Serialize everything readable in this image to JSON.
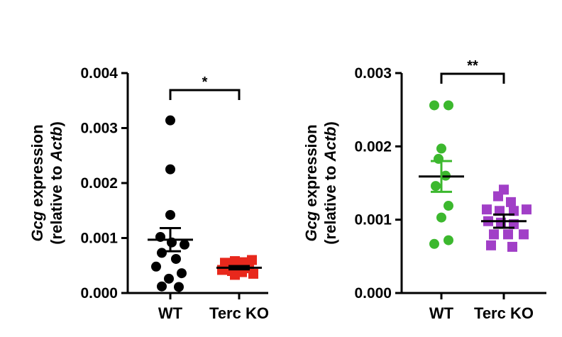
{
  "chart_data": [
    {
      "type": "scatter",
      "categories": [
        "WT",
        "Terc KO"
      ],
      "ylabel": {
        "gene": "Gcg",
        "line1_rest": " expression",
        "line2_pre": "(relative to ",
        "ref": "Actb",
        "line2_post": ")"
      },
      "ylim": [
        0,
        0.004
      ],
      "yticks": [
        "0.000",
        "0.001",
        "0.002",
        "0.003",
        "0.004"
      ],
      "ytick_values": [
        0,
        0.001,
        0.002,
        0.003,
        0.004
      ],
      "significance": "*",
      "series": [
        {
          "category": "WT",
          "marker": "circle",
          "color": "#000000",
          "points": [
            {
              "v": 0.00314,
              "dx": 0
            },
            {
              "v": 0.00225,
              "dx": 0
            },
            {
              "v": 0.00142,
              "dx": 0
            },
            {
              "v": 0.00102,
              "dx": -14
            },
            {
              "v": 0.00092,
              "dx": 2
            },
            {
              "v": 0.00088,
              "dx": 20
            },
            {
              "v": 0.00073,
              "dx": -12
            },
            {
              "v": 0.00062,
              "dx": 8
            },
            {
              "v": 0.00048,
              "dx": -20
            },
            {
              "v": 0.00036,
              "dx": 16
            },
            {
              "v": 0.00026,
              "dx": -2
            },
            {
              "v": 0.00012,
              "dx": -12
            },
            {
              "v": 0.00011,
              "dx": 12
            }
          ],
          "mean": 0.00097,
          "sem_upper": 0.00118,
          "sem_lower": 0.00076
        },
        {
          "category": "Terc KO",
          "marker": "square",
          "color": "#e8281c",
          "points": [
            {
              "v": 0.00055,
              "dx": -20
            },
            {
              "v": 0.00058,
              "dx": -6
            },
            {
              "v": 0.00056,
              "dx": 8
            },
            {
              "v": 0.0006,
              "dx": 18
            },
            {
              "v": 0.00048,
              "dx": -16
            },
            {
              "v": 0.00046,
              "dx": -2
            },
            {
              "v": 0.00045,
              "dx": 14
            },
            {
              "v": 0.00042,
              "dx": -24
            },
            {
              "v": 0.0004,
              "dx": -10
            },
            {
              "v": 0.00038,
              "dx": 4
            },
            {
              "v": 0.00035,
              "dx": 20
            },
            {
              "v": 0.00033,
              "dx": -6
            }
          ],
          "mean": 0.00046,
          "sem_upper": 0.00049,
          "sem_lower": 0.00043
        }
      ]
    },
    {
      "type": "scatter",
      "categories": [
        "WT",
        "Terc KO"
      ],
      "ylabel": {
        "gene": "Gcg",
        "line1_rest": " expression",
        "line2_pre": "(relative to ",
        "ref": "Actb",
        "line2_post": ")"
      },
      "ylim": [
        0,
        0.003
      ],
      "yticks": [
        "0.000",
        "0.001",
        "0.002",
        "0.003"
      ],
      "ytick_values": [
        0,
        0.001,
        0.002,
        0.003
      ],
      "significance": "**",
      "series": [
        {
          "category": "WT",
          "marker": "circle",
          "color": "#3cb82e",
          "points": [
            {
              "v": 0.00256,
              "dx": -10
            },
            {
              "v": 0.00256,
              "dx": 10
            },
            {
              "v": 0.00197,
              "dx": 0
            },
            {
              "v": 0.00183,
              "dx": -4
            },
            {
              "v": 0.0016,
              "dx": 6
            },
            {
              "v": 0.00146,
              "dx": -8
            },
            {
              "v": 0.00119,
              "dx": 10
            },
            {
              "v": 0.00103,
              "dx": 0
            },
            {
              "v": 0.00072,
              "dx": 10
            },
            {
              "v": 0.00067,
              "dx": -10
            }
          ],
          "mean": 0.00159,
          "sem_upper": 0.0018,
          "sem_lower": 0.00138
        },
        {
          "category": "Terc KO",
          "marker": "square",
          "color": "#a13fc7",
          "points": [
            {
              "v": 0.00141,
              "dx": 0
            },
            {
              "v": 0.00132,
              "dx": -8
            },
            {
              "v": 0.00124,
              "dx": 10
            },
            {
              "v": 0.00114,
              "dx": -24
            },
            {
              "v": 0.00112,
              "dx": -6
            },
            {
              "v": 0.00112,
              "dx": 14
            },
            {
              "v": 0.00114,
              "dx": 32
            },
            {
              "v": 0.00098,
              "dx": -22
            },
            {
              "v": 0.00096,
              "dx": -4
            },
            {
              "v": 0.00094,
              "dx": 14
            },
            {
              "v": 0.0008,
              "dx": -14
            },
            {
              "v": 0.0008,
              "dx": 6
            },
            {
              "v": 0.0008,
              "dx": 28
            },
            {
              "v": 0.00065,
              "dx": -18
            },
            {
              "v": 0.00063,
              "dx": 12
            }
          ],
          "mean": 0.00098,
          "sem_upper": 0.00107,
          "sem_lower": 0.00089
        }
      ]
    }
  ]
}
